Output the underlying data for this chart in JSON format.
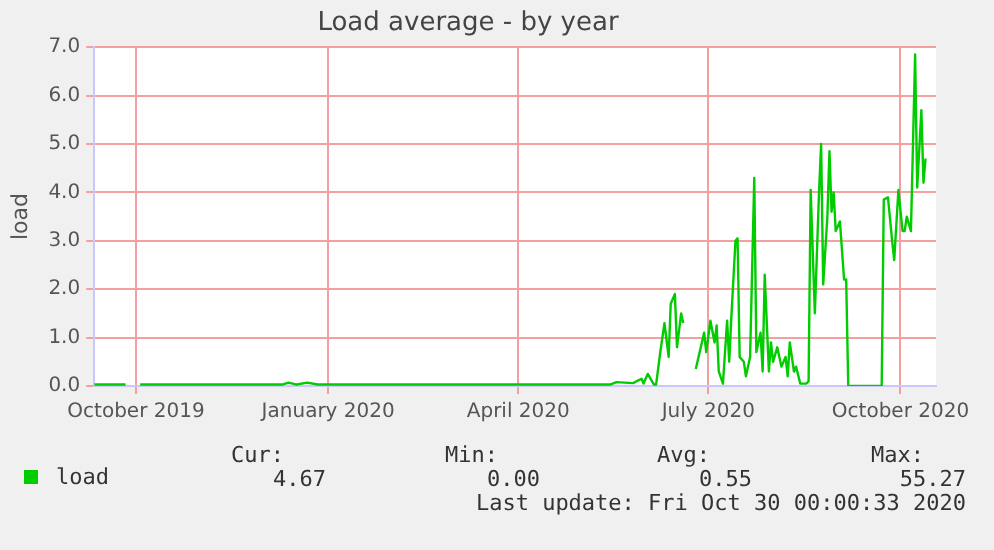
{
  "chart_data": {
    "type": "line",
    "title": "Load average - by year",
    "ylabel": "load",
    "x": [
      "2019-09-11",
      "2019-09-26",
      "2019-09-30",
      "2019-10-03",
      "2019-12-10",
      "2019-12-13",
      "2019-12-17",
      "2019-12-22",
      "2019-12-27",
      "2020-05-15",
      "2020-05-18",
      "2020-05-26",
      "2020-05-30",
      "2020-05-31",
      "2020-06-02",
      "2020-06-04",
      "2020-06-05",
      "2020-06-06",
      "2020-06-08",
      "2020-06-10",
      "2020-06-12",
      "2020-06-13",
      "2020-06-15",
      "2020-06-16",
      "2020-06-18",
      "2020-06-19",
      "2020-06-22",
      "2020-06-25",
      "2020-06-29",
      "2020-06-30",
      "2020-07-02",
      "2020-07-04",
      "2020-07-05",
      "2020-07-06",
      "2020-07-08",
      "2020-07-10",
      "2020-07-11",
      "2020-07-12",
      "2020-07-14",
      "2020-07-15",
      "2020-07-16",
      "2020-07-18",
      "2020-07-19",
      "2020-07-21",
      "2020-07-23",
      "2020-07-24",
      "2020-07-26",
      "2020-07-27",
      "2020-07-28",
      "2020-07-30",
      "2020-07-31",
      "2020-08-01",
      "2020-08-03",
      "2020-08-05",
      "2020-08-07",
      "2020-08-08",
      "2020-08-09",
      "2020-08-11",
      "2020-08-12",
      "2020-08-14",
      "2020-08-17",
      "2020-08-18",
      "2020-08-19",
      "2020-08-21",
      "2020-08-23",
      "2020-08-24",
      "2020-08-25",
      "2020-08-27",
      "2020-08-28",
      "2020-08-29",
      "2020-08-30",
      "2020-08-31",
      "2020-09-02",
      "2020-09-04",
      "2020-09-05",
      "2020-09-06",
      "2020-09-22",
      "2020-09-23",
      "2020-09-25",
      "2020-09-27",
      "2020-09-28",
      "2020-09-30",
      "2020-10-02",
      "2020-10-03",
      "2020-10-04",
      "2020-10-06",
      "2020-10-08",
      "2020-10-09",
      "2020-10-11",
      "2020-10-12",
      "2020-10-13"
    ],
    "series": [
      {
        "name": "load",
        "color": "#00cc00",
        "values": [
          0.03,
          0.03,
          null,
          0.03,
          0.03,
          0.07,
          0.03,
          0.07,
          0.03,
          0.03,
          0.08,
          0.06,
          0.15,
          0.05,
          0.25,
          0.1,
          0.03,
          0.03,
          0.7,
          1.3,
          0.6,
          1.7,
          1.9,
          0.8,
          1.5,
          1.3,
          null,
          0.35,
          1.1,
          0.7,
          1.35,
          0.9,
          1.25,
          0.3,
          0.05,
          1.35,
          0.5,
          1.4,
          3.0,
          3.05,
          0.6,
          0.5,
          0.2,
          0.6,
          4.3,
          0.7,
          1.1,
          0.3,
          2.3,
          0.3,
          0.9,
          0.5,
          0.8,
          0.4,
          0.6,
          0.2,
          0.9,
          0.3,
          0.4,
          0.05,
          0.05,
          0.1,
          4.05,
          1.5,
          4.0,
          5.0,
          2.1,
          3.5,
          4.85,
          3.6,
          4.0,
          3.2,
          3.4,
          2.2,
          2.2,
          0.0,
          0.0,
          3.85,
          3.9,
          3.0,
          2.6,
          4.05,
          3.2,
          3.2,
          3.5,
          3.2,
          6.85,
          4.1,
          5.7,
          4.2,
          4.7
        ]
      }
    ],
    "xlim": [
      "2019-09-11",
      "2020-10-18"
    ],
    "xticks": [
      {
        "value": "2019-10-01",
        "label": "October 2019"
      },
      {
        "value": "2020-01-01",
        "label": "January 2020"
      },
      {
        "value": "2020-04-01",
        "label": "April 2020"
      },
      {
        "value": "2020-07-01",
        "label": "July 2020"
      },
      {
        "value": "2020-10-01",
        "label": "October 2020"
      }
    ],
    "ylim": [
      0,
      7
    ],
    "yticks": [
      {
        "value": 0,
        "label": "0.0"
      },
      {
        "value": 1,
        "label": "1.0"
      },
      {
        "value": 2,
        "label": "2.0"
      },
      {
        "value": 3,
        "label": "3.0"
      },
      {
        "value": 4,
        "label": "4.0"
      },
      {
        "value": 5,
        "label": "5.0"
      },
      {
        "value": 6,
        "label": "6.0"
      },
      {
        "value": 7,
        "label": "7.0"
      }
    ],
    "grid": true,
    "legend": "bottom left",
    "marker": "none",
    "line_style": "solid",
    "annotations": [
      "Cur:",
      "Min:",
      "Avg:",
      "Max:",
      "4.67",
      "0.00",
      "0.55",
      "55.27",
      "Last update: Fri Oct 30 00:00:33 2020"
    ]
  }
}
